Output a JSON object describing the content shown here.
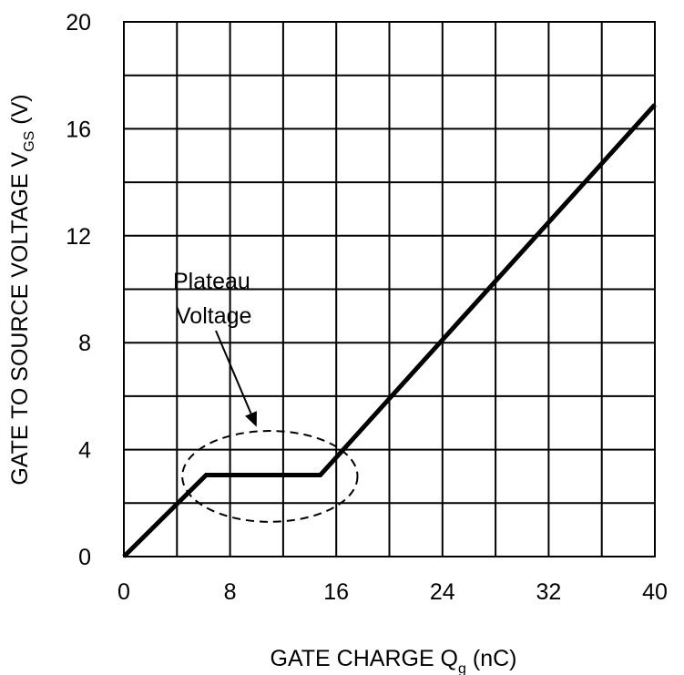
{
  "chart_data": {
    "type": "line",
    "xlabel": "GATE CHARGE Q",
    "xlabel_sub": "g",
    "xlabel_unit": " (nC)",
    "ylabel": "GATE TO SOURCE VOLTAGE V",
    "ylabel_sub": "GS",
    "ylabel_unit": " (V)",
    "xlim": [
      0,
      40
    ],
    "ylim": [
      0,
      20
    ],
    "x_ticks": [
      0,
      8,
      16,
      24,
      32,
      40
    ],
    "y_ticks": [
      0,
      4,
      8,
      12,
      16,
      20
    ],
    "x_grid_step": 4,
    "y_grid_step": 2,
    "grid": true,
    "series": [
      {
        "x": [
          0,
          6.2,
          14.8,
          40
        ],
        "y": [
          0,
          3.05,
          3.05,
          16.9
        ]
      }
    ],
    "annotation": {
      "lines": [
        "Plateau",
        "Voltage"
      ],
      "ellipse_center": [
        11,
        3
      ],
      "ellipse_radii": [
        6.6,
        1.7
      ],
      "arrow_tip": [
        10,
        4.85
      ]
    },
    "colors": {
      "line": "#000000",
      "grid": "#000000"
    }
  }
}
